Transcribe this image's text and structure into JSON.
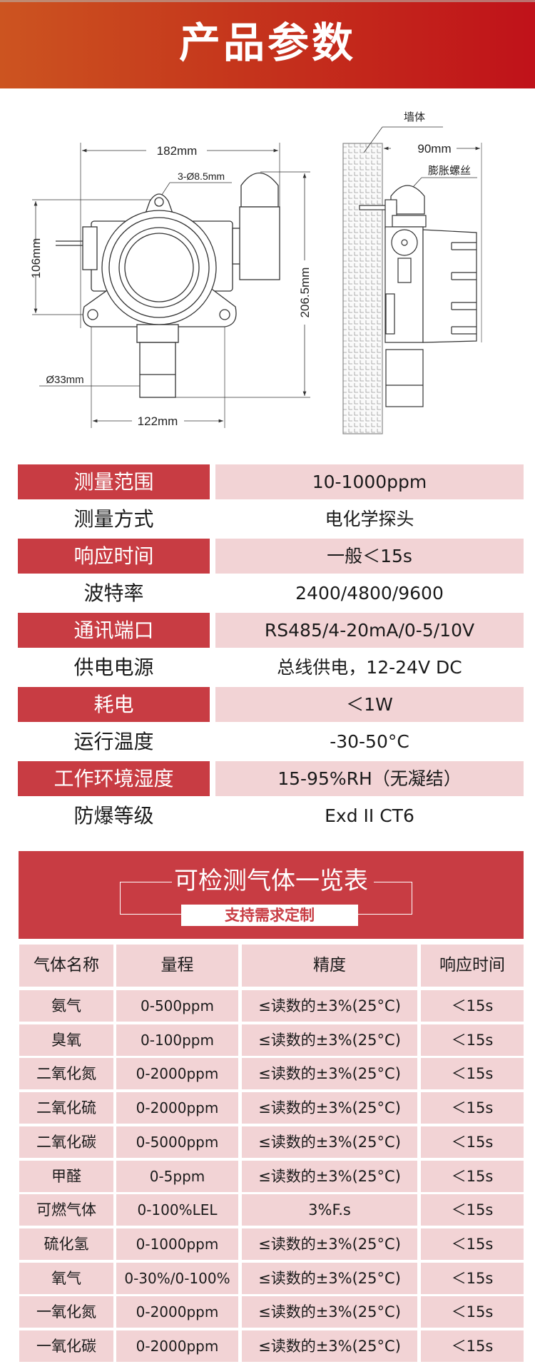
{
  "header": {
    "title": "产品参数"
  },
  "diagram": {
    "width_label": "182mm",
    "hole_label": "3-Ø8.5mm",
    "height_label": "106mm",
    "total_height_label": "206.5mm",
    "sensor_diameter_label": "Ø33mm",
    "hole_spacing_label": "122mm",
    "wall_label": "墙体",
    "depth_label": "90mm",
    "anchor_label": "膨胀螺丝"
  },
  "specs": [
    {
      "label": "测量范围",
      "value": "10-1000ppm",
      "highlight": true
    },
    {
      "label": "测量方式",
      "value": "电化学探头",
      "highlight": false
    },
    {
      "label": "响应时间",
      "value": "一般＜15s",
      "highlight": true
    },
    {
      "label": "波特率",
      "value": "2400/4800/9600",
      "highlight": false
    },
    {
      "label": "通讯端口",
      "value": "RS485/4-20mA/0-5/10V",
      "highlight": true
    },
    {
      "label": "供电电源",
      "value": "总线供电，12-24V DC",
      "highlight": false
    },
    {
      "label": "耗电",
      "value": "＜1W",
      "highlight": true
    },
    {
      "label": "运行温度",
      "value": "-30-50°C",
      "highlight": false
    },
    {
      "label": "工作环境湿度",
      "value": "15-95%RH（无凝结）",
      "highlight": true
    },
    {
      "label": "防爆等级",
      "value": "Exd II CT6",
      "highlight": false
    }
  ],
  "gas_section": {
    "title": "可检测气体一览表",
    "subtitle": "支持需求定制",
    "columns": [
      "气体名称",
      "量程",
      "精度",
      "响应时间"
    ],
    "rows": [
      [
        "氨气",
        "0-500ppm",
        "≤读数的±3%(25°C)",
        "＜15s"
      ],
      [
        "臭氧",
        "0-100ppm",
        "≤读数的±3%(25°C)",
        "＜15s"
      ],
      [
        "二氧化氮",
        "0-2000ppm",
        "≤读数的±3%(25°C)",
        "＜15s"
      ],
      [
        "二氧化硫",
        "0-2000ppm",
        "≤读数的±3%(25°C)",
        "＜15s"
      ],
      [
        "二氧化碳",
        "0-5000ppm",
        "≤读数的±3%(25°C)",
        "＜15s"
      ],
      [
        "甲醛",
        "0-5ppm",
        "≤读数的±3%(25°C)",
        "＜15s"
      ],
      [
        "可燃气体",
        "0-100%LEL",
        "3%F.s",
        "＜15s"
      ],
      [
        "硫化氢",
        "0-1000ppm",
        "≤读数的±3%(25°C)",
        "＜15s"
      ],
      [
        "氧气",
        "0-30%/0-100%",
        "≤读数的±3%(25°C)",
        "＜15s"
      ],
      [
        "一氧化氮",
        "0-2000ppm",
        "≤读数的±3%(25°C)",
        "＜15s"
      ],
      [
        "一氧化碳",
        "0-2000ppm",
        "≤读数的±3%(25°C)",
        "＜15s"
      ]
    ]
  },
  "colors": {
    "accent_red": "#c83c43",
    "pink": "#f2d3d5",
    "header_left": "#cc5420",
    "header_right": "#c0121a"
  }
}
